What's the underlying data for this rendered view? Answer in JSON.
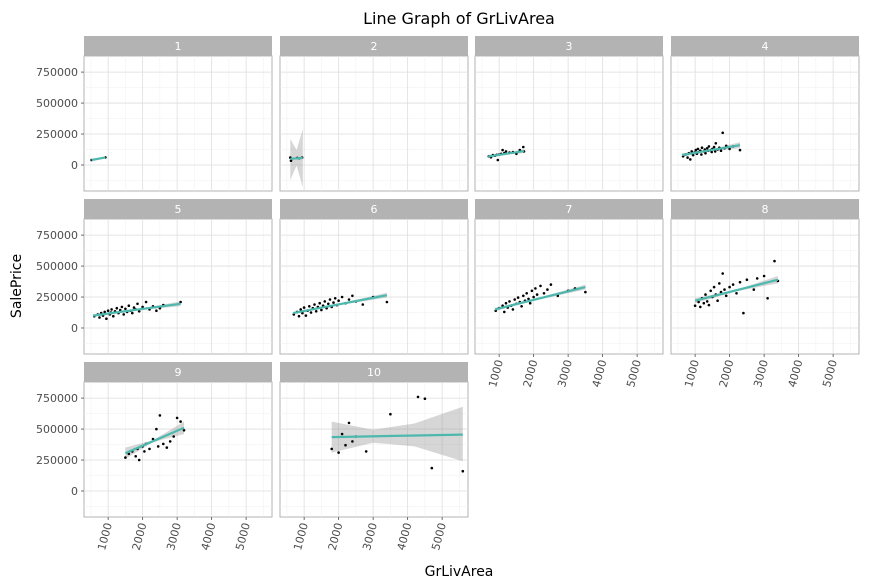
{
  "chart_data": {
    "type": "scatter",
    "title": "Line Graph of GrLivArea",
    "xlabel": "GrLivArea",
    "ylabel": "SalePrice",
    "xlim": [
      300,
      5750
    ],
    "ylim": [
      -210000,
      880000
    ],
    "x_ticks": [
      1000,
      2000,
      3000,
      4000,
      5000
    ],
    "y_ticks": [
      0,
      250000,
      500000,
      750000
    ],
    "grid": true,
    "fit_color": "#4db8ad",
    "point_color": "#000000",
    "band_color": "#999999",
    "facets": [
      {
        "label": "1",
        "points": [
          [
            520,
            40000
          ],
          [
            920,
            61000
          ]
        ],
        "fit": [
          [
            520,
            40000
          ],
          [
            920,
            61000
          ]
        ],
        "ci": null
      },
      {
        "label": "2",
        "points": [
          [
            600,
            60000
          ],
          [
            620,
            35000
          ],
          [
            800,
            57000
          ],
          [
            860,
            55000
          ],
          [
            940,
            60000
          ]
        ],
        "fit": [
          [
            600,
            50000
          ],
          [
            960,
            57000
          ]
        ],
        "ci": [
          [
            600,
            210000,
            -120000
          ],
          [
            780,
            120000,
            -5000
          ],
          [
            960,
            290000,
            -180000
          ]
        ]
      },
      {
        "label": "3",
        "points": [
          [
            700,
            70000
          ],
          [
            760,
            62000
          ],
          [
            820,
            80000
          ],
          [
            880,
            75000
          ],
          [
            930,
            82000
          ],
          [
            960,
            40000
          ],
          [
            1000,
            85000
          ],
          [
            1060,
            90000
          ],
          [
            1100,
            120000
          ],
          [
            1150,
            95000
          ],
          [
            1200,
            110000
          ],
          [
            1300,
            100000
          ],
          [
            1400,
            105000
          ],
          [
            1500,
            90000
          ],
          [
            1600,
            120000
          ],
          [
            1700,
            145000
          ],
          [
            1720,
            110000
          ]
        ],
        "fit": [
          [
            680,
            68000
          ],
          [
            1720,
            112000
          ]
        ],
        "ci": [
          [
            680,
            82000,
            54000
          ],
          [
            1200,
            95000,
            85000
          ],
          [
            1720,
            128000,
            96000
          ]
        ]
      },
      {
        "label": "4",
        "points": [
          [
            650,
            70000
          ],
          [
            720,
            85000
          ],
          [
            780,
            60000
          ],
          [
            820,
            95000
          ],
          [
            860,
            45000
          ],
          [
            900,
            110000
          ],
          [
            940,
            80000
          ],
          [
            980,
            100000
          ],
          [
            1020,
            120000
          ],
          [
            1050,
            90000
          ],
          [
            1080,
            130000
          ],
          [
            1100,
            105000
          ],
          [
            1150,
            115000
          ],
          [
            1180,
            85000
          ],
          [
            1200,
            140000
          ],
          [
            1250,
            110000
          ],
          [
            1280,
            125000
          ],
          [
            1300,
            95000
          ],
          [
            1350,
            135000
          ],
          [
            1380,
            115000
          ],
          [
            1400,
            150000
          ],
          [
            1450,
            120000
          ],
          [
            1480,
            105000
          ],
          [
            1500,
            130000
          ],
          [
            1550,
            145000
          ],
          [
            1580,
            110000
          ],
          [
            1600,
            175000
          ],
          [
            1650,
            125000
          ],
          [
            1700,
            140000
          ],
          [
            1750,
            115000
          ],
          [
            1800,
            260000
          ],
          [
            1850,
            135000
          ],
          [
            1900,
            155000
          ],
          [
            2000,
            130000
          ],
          [
            2100,
            150000
          ],
          [
            2300,
            120000
          ]
        ],
        "fit": [
          [
            620,
            80000
          ],
          [
            2300,
            160000
          ]
        ],
        "ci": [
          [
            620,
            95000,
            65000
          ],
          [
            1400,
            122000,
            112000
          ],
          [
            2300,
            185000,
            135000
          ]
        ]
      },
      {
        "label": "5",
        "points": [
          [
            600,
            95000
          ],
          [
            700,
            110000
          ],
          [
            750,
            85000
          ],
          [
            800,
            120000
          ],
          [
            850,
            100000
          ],
          [
            900,
            130000
          ],
          [
            950,
            75000
          ],
          [
            1000,
            140000
          ],
          [
            1050,
            110000
          ],
          [
            1080,
            125000
          ],
          [
            1100,
            150000
          ],
          [
            1150,
            95000
          ],
          [
            1200,
            135000
          ],
          [
            1250,
            160000
          ],
          [
            1300,
            120000
          ],
          [
            1350,
            145000
          ],
          [
            1400,
            170000
          ],
          [
            1450,
            110000
          ],
          [
            1500,
            155000
          ],
          [
            1550,
            130000
          ],
          [
            1600,
            180000
          ],
          [
            1650,
            140000
          ],
          [
            1700,
            120000
          ],
          [
            1750,
            165000
          ],
          [
            1800,
            150000
          ],
          [
            1850,
            195000
          ],
          [
            1900,
            135000
          ],
          [
            2000,
            170000
          ],
          [
            2100,
            210000
          ],
          [
            2200,
            150000
          ],
          [
            2300,
            175000
          ],
          [
            2400,
            140000
          ],
          [
            2500,
            160000
          ],
          [
            2600,
            185000
          ],
          [
            3100,
            210000
          ]
        ],
        "fit": [
          [
            560,
            100000
          ],
          [
            3100,
            195000
          ]
        ],
        "ci": [
          [
            560,
            110000,
            90000
          ],
          [
            1800,
            150000,
            142000
          ],
          [
            3100,
            215000,
            175000
          ]
        ]
      },
      {
        "label": "6",
        "points": [
          [
            700,
            110000
          ],
          [
            800,
            130000
          ],
          [
            850,
            95000
          ],
          [
            900,
            150000
          ],
          [
            950,
            120000
          ],
          [
            1000,
            165000
          ],
          [
            1050,
            100000
          ],
          [
            1100,
            140000
          ],
          [
            1150,
            175000
          ],
          [
            1200,
            125000
          ],
          [
            1250,
            160000
          ],
          [
            1300,
            190000
          ],
          [
            1350,
            135000
          ],
          [
            1400,
            170000
          ],
          [
            1450,
            200000
          ],
          [
            1500,
            145000
          ],
          [
            1550,
            180000
          ],
          [
            1600,
            215000
          ],
          [
            1650,
            160000
          ],
          [
            1700,
            195000
          ],
          [
            1750,
            230000
          ],
          [
            1800,
            170000
          ],
          [
            1850,
            205000
          ],
          [
            1900,
            240000
          ],
          [
            1950,
            185000
          ],
          [
            2000,
            220000
          ],
          [
            2100,
            250000
          ],
          [
            2200,
            200000
          ],
          [
            2300,
            230000
          ],
          [
            2400,
            260000
          ],
          [
            2500,
            215000
          ],
          [
            2700,
            190000
          ],
          [
            3000,
            250000
          ],
          [
            3400,
            210000
          ]
        ],
        "fit": [
          [
            680,
            120000
          ],
          [
            3400,
            265000
          ]
        ],
        "ci": [
          [
            680,
            130000,
            110000
          ],
          [
            1800,
            183000,
            175000
          ],
          [
            3400,
            285000,
            245000
          ]
        ]
      },
      {
        "label": "7",
        "points": [
          [
            900,
            140000
          ],
          [
            1000,
            160000
          ],
          [
            1100,
            180000
          ],
          [
            1150,
            130000
          ],
          [
            1200,
            200000
          ],
          [
            1250,
            165000
          ],
          [
            1300,
            215000
          ],
          [
            1350,
            180000
          ],
          [
            1400,
            150000
          ],
          [
            1450,
            230000
          ],
          [
            1500,
            195000
          ],
          [
            1550,
            245000
          ],
          [
            1600,
            210000
          ],
          [
            1650,
            175000
          ],
          [
            1700,
            260000
          ],
          [
            1750,
            220000
          ],
          [
            1800,
            280000
          ],
          [
            1850,
            235000
          ],
          [
            1900,
            200000
          ],
          [
            1950,
            300000
          ],
          [
            2000,
            250000
          ],
          [
            2050,
            320000
          ],
          [
            2100,
            270000
          ],
          [
            2200,
            340000
          ],
          [
            2300,
            280000
          ],
          [
            2400,
            310000
          ],
          [
            2500,
            350000
          ],
          [
            2700,
            260000
          ],
          [
            3000,
            300000
          ],
          [
            3200,
            320000
          ],
          [
            3500,
            290000
          ]
        ],
        "fit": [
          [
            880,
            150000
          ],
          [
            3500,
            330000
          ]
        ],
        "ci": [
          [
            880,
            165000,
            135000
          ],
          [
            2000,
            232000,
            222000
          ],
          [
            3500,
            350000,
            310000
          ]
        ]
      },
      {
        "label": "8",
        "points": [
          [
            1000,
            180000
          ],
          [
            1100,
            210000
          ],
          [
            1150,
            170000
          ],
          [
            1200,
            240000
          ],
          [
            1250,
            200000
          ],
          [
            1300,
            270000
          ],
          [
            1350,
            215000
          ],
          [
            1400,
            185000
          ],
          [
            1450,
            300000
          ],
          [
            1500,
            250000
          ],
          [
            1550,
            330000
          ],
          [
            1600,
            270000
          ],
          [
            1650,
            220000
          ],
          [
            1700,
            360000
          ],
          [
            1750,
            290000
          ],
          [
            1800,
            440000
          ],
          [
            1850,
            310000
          ],
          [
            1900,
            260000
          ],
          [
            2000,
            330000
          ],
          [
            2100,
            350000
          ],
          [
            2200,
            280000
          ],
          [
            2300,
            370000
          ],
          [
            2400,
            120000
          ],
          [
            2500,
            390000
          ],
          [
            2700,
            310000
          ],
          [
            2800,
            400000
          ],
          [
            3000,
            420000
          ],
          [
            3100,
            240000
          ],
          [
            3300,
            540000
          ],
          [
            3400,
            380000
          ]
        ],
        "fit": [
          [
            1000,
            220000
          ],
          [
            3400,
            390000
          ]
        ],
        "ci": [
          [
            1000,
            240000,
            200000
          ],
          [
            2200,
            308000,
            296000
          ],
          [
            3400,
            420000,
            360000
          ]
        ]
      },
      {
        "label": "9",
        "points": [
          [
            1500,
            270000
          ],
          [
            1600,
            300000
          ],
          [
            1700,
            320000
          ],
          [
            1800,
            280000
          ],
          [
            1850,
            340000
          ],
          [
            1900,
            250000
          ],
          [
            2000,
            360000
          ],
          [
            2050,
            320000
          ],
          [
            2100,
            380000
          ],
          [
            2200,
            340000
          ],
          [
            2300,
            420000
          ],
          [
            2400,
            500000
          ],
          [
            2450,
            360000
          ],
          [
            2500,
            610000
          ],
          [
            2600,
            380000
          ],
          [
            2700,
            350000
          ],
          [
            2800,
            400000
          ],
          [
            2900,
            440000
          ],
          [
            3000,
            590000
          ],
          [
            3100,
            560000
          ],
          [
            3200,
            490000
          ]
        ],
        "fit": [
          [
            1500,
            305000
          ],
          [
            3200,
            510000
          ]
        ],
        "ci": [
          [
            1500,
            350000,
            260000
          ],
          [
            2300,
            410000,
            395000
          ],
          [
            3200,
            560000,
            460000
          ]
        ]
      },
      {
        "label": "10",
        "points": [
          [
            1800,
            340000
          ],
          [
            2000,
            310000
          ],
          [
            2100,
            460000
          ],
          [
            2200,
            370000
          ],
          [
            2300,
            550000
          ],
          [
            2400,
            400000
          ],
          [
            2500,
            440000
          ],
          [
            2800,
            320000
          ],
          [
            3500,
            620000
          ],
          [
            4300,
            760000
          ],
          [
            4500,
            745000
          ],
          [
            4700,
            185000
          ],
          [
            5600,
            160000
          ]
        ],
        "fit": [
          [
            1800,
            435000
          ],
          [
            5600,
            455000
          ]
        ],
        "ci": [
          [
            1800,
            560000,
            310000
          ],
          [
            3000,
            495000,
            390000
          ],
          [
            4200,
            545000,
            360000
          ],
          [
            5600,
            680000,
            240000
          ]
        ]
      }
    ]
  }
}
